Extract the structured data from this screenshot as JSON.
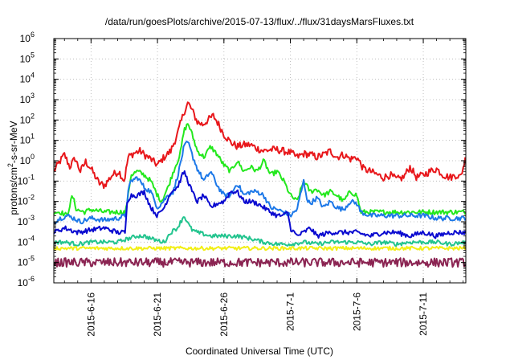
{
  "chart_data": {
    "type": "line",
    "title": "/data/run/goesPlots/archive/2015-07-13/flux/../flux/31daysMarsFluxes.txt",
    "xlabel": "Coordinated Universal Time (UTC)",
    "ylabel": {
      "prefix": "protons/cm",
      "sup": "2",
      "suffix": "-s-sr-MeV"
    },
    "yscale": "log",
    "ylim": [
      1e-06,
      1000000.0
    ],
    "xlim": [
      -2.8,
      28.2
    ],
    "x_units": "days after 2015-6-16",
    "grid": true,
    "yticks": [
      {
        "base": "10",
        "exp": "-6"
      },
      {
        "base": "10",
        "exp": "-5"
      },
      {
        "base": "10",
        "exp": "-4"
      },
      {
        "base": "10",
        "exp": "-3"
      },
      {
        "base": "10",
        "exp": "-2"
      },
      {
        "base": "10",
        "exp": "-1"
      },
      {
        "base": "10",
        "exp": "0"
      },
      {
        "base": "10",
        "exp": "1"
      },
      {
        "base": "10",
        "exp": "2"
      },
      {
        "base": "10",
        "exp": "3"
      },
      {
        "base": "10",
        "exp": "4"
      },
      {
        "base": "10",
        "exp": "5"
      },
      {
        "base": "10",
        "exp": "6"
      }
    ],
    "xticks": [
      {
        "x": 0,
        "label": "2015-6-16"
      },
      {
        "x": 5,
        "label": "2015-6-21"
      },
      {
        "x": 10,
        "label": "2015-6-26"
      },
      {
        "x": 15,
        "label": "2015-7-1"
      },
      {
        "x": 20,
        "label": "2015-7-6"
      },
      {
        "x": 25,
        "label": "2015-7-11"
      }
    ],
    "series": [
      {
        "color": "#e8171b",
        "noise": 0.18,
        "points": [
          [
            -2.8,
            0.3
          ],
          [
            -2.4,
            0.8
          ],
          [
            -2,
            2
          ],
          [
            -1.6,
            0.5
          ],
          [
            -1.2,
            1.3
          ],
          [
            -0.8,
            0.3
          ],
          [
            -0.4,
            0.9
          ],
          [
            0,
            0.4
          ],
          [
            0.6,
            0.08
          ],
          [
            1,
            0.06
          ],
          [
            1.6,
            0.2
          ],
          [
            2.1,
            0.3
          ],
          [
            2.5,
            0.1
          ],
          [
            2.8,
            1.5
          ],
          [
            3.2,
            2.3
          ],
          [
            3.7,
            3
          ],
          [
            4,
            2
          ],
          [
            4.5,
            1.2
          ],
          [
            5,
            0.6
          ],
          [
            5.5,
            1.5
          ],
          [
            6,
            3
          ],
          [
            6.5,
            20
          ],
          [
            7,
            250
          ],
          [
            7.3,
            700
          ],
          [
            7.6,
            300
          ],
          [
            8,
            80
          ],
          [
            8.4,
            60
          ],
          [
            8.8,
            100
          ],
          [
            9.2,
            160
          ],
          [
            9.5,
            80
          ],
          [
            10,
            20
          ],
          [
            10.5,
            8
          ],
          [
            11,
            5
          ],
          [
            11.5,
            6
          ],
          [
            12,
            6
          ],
          [
            12.5,
            4
          ],
          [
            13,
            3
          ],
          [
            13.5,
            3.5
          ],
          [
            14,
            3.5
          ],
          [
            15,
            2.5
          ],
          [
            15.5,
            1.5
          ],
          [
            16,
            2.2
          ],
          [
            16.5,
            2
          ],
          [
            17,
            1.5
          ],
          [
            17.5,
            2
          ],
          [
            18,
            3
          ],
          [
            18.5,
            1.5
          ],
          [
            19,
            2
          ],
          [
            19.5,
            1.2
          ],
          [
            20,
            1.5
          ],
          [
            20.5,
            0.4
          ],
          [
            21,
            0.3
          ],
          [
            22,
            0.15
          ],
          [
            22.5,
            0.2
          ],
          [
            23,
            0.12
          ],
          [
            23.5,
            0.15
          ],
          [
            24,
            0.5
          ],
          [
            24.5,
            0.15
          ],
          [
            25,
            0.2
          ],
          [
            25.5,
            0.3
          ],
          [
            26,
            0.4
          ],
          [
            26.5,
            0.2
          ],
          [
            27,
            0.15
          ],
          [
            27.5,
            0.2
          ],
          [
            27.8,
            0.15
          ],
          [
            28.2,
            1.5
          ]
        ]
      },
      {
        "color": "#23e81d",
        "noise": 0.12,
        "points": [
          [
            -2.8,
            0.003
          ],
          [
            -2.3,
            0.003
          ],
          [
            -1.8,
            0.002
          ],
          [
            -1.4,
            0.02
          ],
          [
            -1.1,
            0.004
          ],
          [
            -0.5,
            0.003
          ],
          [
            0,
            0.004
          ],
          [
            1,
            0.003
          ],
          [
            2,
            0.003
          ],
          [
            2.6,
            0.003
          ],
          [
            2.8,
            0.02
          ],
          [
            3,
            0.2
          ],
          [
            3.5,
            0.3
          ],
          [
            4,
            0.2
          ],
          [
            4.5,
            0.1
          ],
          [
            5,
            0.02
          ],
          [
            5.3,
            0.01
          ],
          [
            5.8,
            0.05
          ],
          [
            6.2,
            0.3
          ],
          [
            6.7,
            2
          ],
          [
            7,
            30
          ],
          [
            7.3,
            70
          ],
          [
            7.6,
            20
          ],
          [
            8,
            3
          ],
          [
            8.5,
            1.5
          ],
          [
            9,
            5
          ],
          [
            9.5,
            2
          ],
          [
            10,
            0.6
          ],
          [
            10.5,
            0.3
          ],
          [
            11,
            1
          ],
          [
            11.5,
            0.3
          ],
          [
            12,
            0.5
          ],
          [
            12.5,
            0.3
          ],
          [
            13,
            1
          ],
          [
            13.5,
            0.2
          ],
          [
            14,
            0.3
          ],
          [
            14.5,
            0.1
          ],
          [
            15,
            0.02
          ],
          [
            15.5,
            0.01
          ],
          [
            16,
            0.1
          ],
          [
            16.5,
            0.03
          ],
          [
            17,
            0.04
          ],
          [
            17.5,
            0.02
          ],
          [
            18,
            0.03
          ],
          [
            18.5,
            0.02
          ],
          [
            19,
            0.01
          ],
          [
            19.5,
            0.03
          ],
          [
            20,
            0.02
          ],
          [
            20.3,
            0.003
          ],
          [
            21,
            0.003
          ],
          [
            22,
            0.003
          ],
          [
            23,
            0.003
          ],
          [
            24,
            0.003
          ],
          [
            25,
            0.003
          ],
          [
            26,
            0.003
          ],
          [
            27,
            0.003
          ],
          [
            28.2,
            0.003
          ]
        ]
      },
      {
        "color": "#1c78e8",
        "noise": 0.12,
        "points": [
          [
            -2.8,
            0.001
          ],
          [
            -2.3,
            0.0015
          ],
          [
            -1.8,
            0.002
          ],
          [
            -1.3,
            0.0015
          ],
          [
            -0.8,
            0.001
          ],
          [
            0,
            0.0015
          ],
          [
            1,
            0.0012
          ],
          [
            2,
            0.0015
          ],
          [
            2.6,
            0.002
          ],
          [
            2.8,
            0.03
          ],
          [
            3,
            0.1
          ],
          [
            3.5,
            0.15
          ],
          [
            4,
            0.05
          ],
          [
            4.5,
            0.03
          ],
          [
            5,
            0.005
          ],
          [
            5.3,
            0.008
          ],
          [
            5.8,
            0.02
          ],
          [
            6.2,
            0.03
          ],
          [
            6.6,
            0.3
          ],
          [
            7,
            5
          ],
          [
            7.3,
            8
          ],
          [
            7.6,
            2
          ],
          [
            8,
            0.4
          ],
          [
            8.5,
            0.1
          ],
          [
            9,
            0.3
          ],
          [
            9.5,
            0.06
          ],
          [
            10,
            0.02
          ],
          [
            10.5,
            0.02
          ],
          [
            11,
            0.08
          ],
          [
            11.5,
            0.02
          ],
          [
            12,
            0.03
          ],
          [
            12.5,
            0.03
          ],
          [
            13,
            0.02
          ],
          [
            13.5,
            0.005
          ],
          [
            14,
            0.004
          ],
          [
            14.5,
            0.003
          ],
          [
            15,
            0.002
          ],
          [
            15.5,
            0.004
          ],
          [
            16,
            0.1
          ],
          [
            16.3,
            0.01
          ],
          [
            16.5,
            0.008
          ],
          [
            17,
            0.015
          ],
          [
            17.5,
            0.005
          ],
          [
            18,
            0.01
          ],
          [
            18.5,
            0.005
          ],
          [
            19,
            0.004
          ],
          [
            19.5,
            0.01
          ],
          [
            20,
            0.008
          ],
          [
            20.3,
            0.003
          ],
          [
            21,
            0.002
          ],
          [
            22,
            0.002
          ],
          [
            23,
            0.002
          ],
          [
            24,
            0.002
          ],
          [
            25,
            0.002
          ],
          [
            26,
            0.0015
          ],
          [
            27,
            0.0015
          ],
          [
            28.2,
            0.0015
          ]
        ]
      },
      {
        "color": "#0a0ad0",
        "noise": 0.12,
        "points": [
          [
            -2.8,
            0.0003
          ],
          [
            -2,
            0.0005
          ],
          [
            -1,
            0.0003
          ],
          [
            0,
            0.0004
          ],
          [
            1,
            0.0005
          ],
          [
            2,
            0.0003
          ],
          [
            2.6,
            0.0003
          ],
          [
            2.7,
            0.01
          ],
          [
            3,
            0.02
          ],
          [
            3.5,
            0.02
          ],
          [
            4,
            0.03
          ],
          [
            4.5,
            0.005
          ],
          [
            5,
            0.002
          ],
          [
            5.5,
            0.005
          ],
          [
            6,
            0.03
          ],
          [
            6.5,
            0.05
          ],
          [
            7,
            0.3
          ],
          [
            7.3,
            0.1
          ],
          [
            7.6,
            0.03
          ],
          [
            8,
            0.01
          ],
          [
            8.5,
            0.02
          ],
          [
            9,
            0.005
          ],
          [
            9.5,
            0.008
          ],
          [
            10,
            0.01
          ],
          [
            10.5,
            0.03
          ],
          [
            11,
            0.03
          ],
          [
            11.5,
            0.01
          ],
          [
            12,
            0.01
          ],
          [
            12.5,
            0.008
          ],
          [
            13,
            0.005
          ],
          [
            13.5,
            0.003
          ],
          [
            14,
            0.002
          ],
          [
            14.5,
            0.002
          ],
          [
            14.8,
            0.003
          ],
          [
            15,
            0.0005
          ],
          [
            15.5,
            0.0002
          ],
          [
            16,
            0.0003
          ],
          [
            16.5,
            0.0005
          ],
          [
            17,
            0.0002
          ],
          [
            18,
            0.0003
          ],
          [
            19,
            0.0003
          ],
          [
            20,
            0.0003
          ],
          [
            21,
            0.0002
          ],
          [
            22,
            0.0003
          ],
          [
            23,
            0.0003
          ],
          [
            24,
            0.0002
          ],
          [
            25,
            0.0003
          ],
          [
            26,
            0.0002
          ],
          [
            27,
            0.0003
          ],
          [
            28.2,
            0.0003
          ]
        ]
      },
      {
        "color": "#22c48e",
        "noise": 0.1,
        "points": [
          [
            -2.8,
            0.0001
          ],
          [
            -2,
            0.0001
          ],
          [
            -1,
            8e-05
          ],
          [
            0,
            0.0001
          ],
          [
            1,
            0.0001
          ],
          [
            2,
            0.0001
          ],
          [
            2.8,
            0.00015
          ],
          [
            3.5,
            0.0002
          ],
          [
            4,
            0.0002
          ],
          [
            4.5,
            0.00015
          ],
          [
            5,
            0.00012
          ],
          [
            5.5,
            0.0001
          ],
          [
            6,
            0.0003
          ],
          [
            6.5,
            0.0005
          ],
          [
            7,
            0.002
          ],
          [
            7.3,
            0.0008
          ],
          [
            7.6,
            0.0004
          ],
          [
            8,
            0.0003
          ],
          [
            9,
            0.0002
          ],
          [
            10,
            0.0002
          ],
          [
            11,
            0.0002
          ],
          [
            12,
            0.00015
          ],
          [
            13,
            0.0001
          ],
          [
            14,
            8e-05
          ],
          [
            15,
            8e-05
          ],
          [
            16,
            0.0001
          ],
          [
            17,
            8e-05
          ],
          [
            18,
            0.0001
          ],
          [
            19,
            0.0001
          ],
          [
            20,
            0.0001
          ],
          [
            21,
            8e-05
          ],
          [
            22,
            0.0001
          ],
          [
            23,
            8e-05
          ],
          [
            24,
            0.0001
          ],
          [
            25,
            0.0001
          ],
          [
            26,
            0.0001
          ],
          [
            27,
            8e-05
          ],
          [
            28.2,
            0.0001
          ]
        ]
      },
      {
        "color": "#f2ef16",
        "noise": 0.09,
        "points": [
          [
            -2.8,
            5e-05
          ],
          [
            0,
            5e-05
          ],
          [
            5,
            5e-05
          ],
          [
            10,
            5e-05
          ],
          [
            15,
            5e-05
          ],
          [
            20,
            5e-05
          ],
          [
            25,
            5e-05
          ],
          [
            28.2,
            5e-05
          ]
        ]
      },
      {
        "color": "#8b2452",
        "noise": 0.22,
        "points": [
          [
            -2.8,
            1e-05
          ],
          [
            0,
            1e-05
          ],
          [
            5,
            1e-05
          ],
          [
            10,
            1e-05
          ],
          [
            15,
            1e-05
          ],
          [
            20,
            1e-05
          ],
          [
            25,
            1e-05
          ],
          [
            28.2,
            1e-05
          ]
        ]
      }
    ]
  }
}
